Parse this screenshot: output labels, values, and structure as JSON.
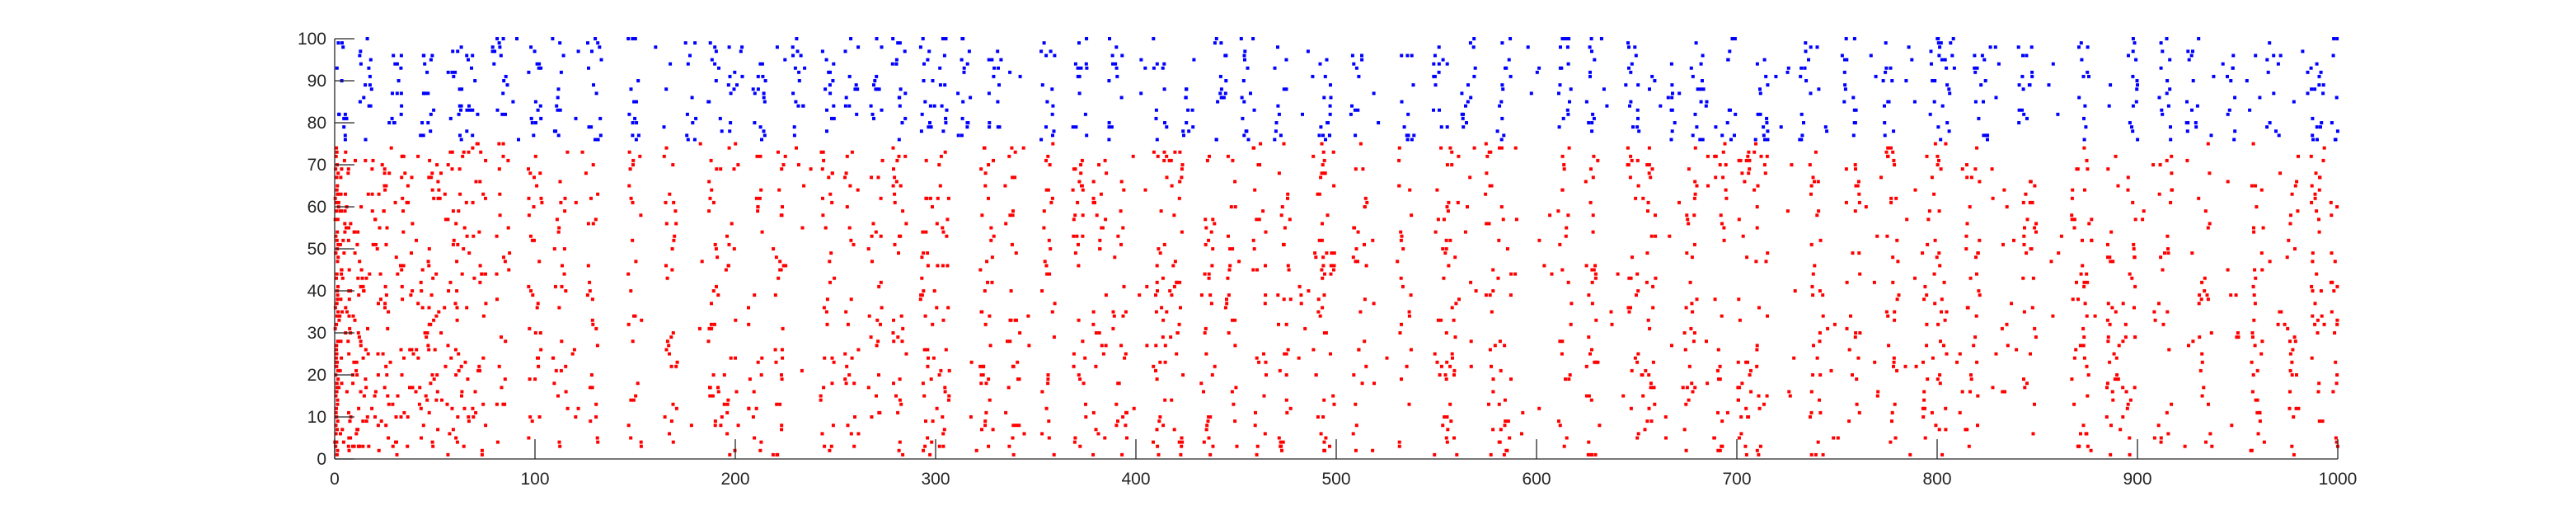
{
  "chart_data": {
    "type": "scatter",
    "title": "",
    "xlabel": "",
    "ylabel": "",
    "xlim": [
      0,
      1000
    ],
    "ylim": [
      0,
      100
    ],
    "xticks": [
      0,
      100,
      200,
      300,
      400,
      500,
      600,
      700,
      800,
      900,
      1000
    ],
    "yticks": [
      0,
      10,
      20,
      30,
      40,
      50,
      60,
      70,
      80,
      90,
      100
    ],
    "grid": false,
    "legend": "none",
    "series": [
      {
        "color": "#ff0000",
        "neuron_range": [
          1,
          75
        ],
        "burst_times": [
          2,
          6,
          10,
          14,
          22,
          28,
          36,
          44,
          50,
          58,
          64,
          72,
          84,
          100,
          112,
          128,
          150,
          168,
          190,
          198,
          210,
          222,
          246,
          258,
          270,
          282,
          296,
          304,
          326,
          338,
          356,
          372,
          382,
          392,
          412,
          420,
          436,
          448,
          462,
          474,
          492,
          496,
          512,
          534,
          552,
          558,
          578,
          584,
          614,
          628,
          648,
          656,
          676,
          692,
          704,
          712,
          740,
          758,
          778,
          796,
          802,
          818,
          846,
          870,
          876,
          888,
          896,
          914,
          934,
          960,
          978,
          990,
          1000
        ],
        "sparse_times": [
          120,
          180,
          234,
          320,
          344,
          402,
          484,
          522,
          568,
          592,
          604,
          640,
          668,
          684,
          726,
          748,
          768,
          786,
          812,
          830,
          836,
          860,
          906,
          926,
          948,
          970
        ],
        "dense_column": {
          "x": 1,
          "y_range": [
            1,
            75
          ]
        }
      },
      {
        "color": "#0000ff",
        "neuron_range": [
          76,
          100
        ],
        "burst_times": [
          4,
          16,
          30,
          46,
          60,
          68,
          82,
          100,
          112,
          130,
          150,
          178,
          190,
          200,
          212,
          232,
          246,
          258,
          270,
          282,
          296,
          304,
          314,
          330,
          356,
          372,
          390,
          412,
          426,
          442,
          456,
          472,
          494,
          510,
          536,
          552,
          566,
          584,
          614,
          628,
          648,
          668,
          680,
          696,
          712,
          734,
          756,
          776,
          800,
          806,
          822,
          844,
          874,
          898,
          914,
          928,
          946,
          968,
          990,
          1000
        ],
        "sparse_times": [
          88,
          124,
          164,
          222,
          340,
          402,
          486,
          520,
          598,
          636,
          660,
          686,
          722,
          744,
          766,
          786,
          830,
          858,
          888,
          938,
          958,
          982
        ]
      }
    ]
  }
}
